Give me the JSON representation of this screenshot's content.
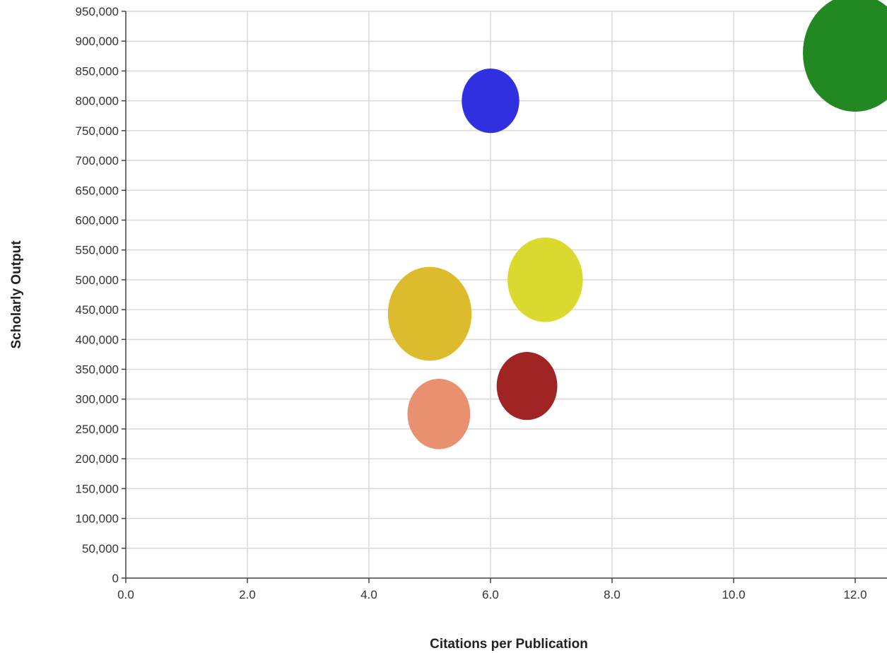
{
  "chart_data": {
    "type": "scatter",
    "title": "",
    "xlabel": "Citations per Publication",
    "ylabel": "Scholarly Output",
    "xlim": [
      0,
      12
    ],
    "ylim": [
      0,
      950000
    ],
    "x_ticks": [
      {
        "value": 0,
        "label": "0.0"
      },
      {
        "value": 2,
        "label": "2.0"
      },
      {
        "value": 4,
        "label": "4.0"
      },
      {
        "value": 6,
        "label": "6.0"
      },
      {
        "value": 8,
        "label": "8.0"
      },
      {
        "value": 10,
        "label": "10.0"
      },
      {
        "value": 12,
        "label": "12.0"
      }
    ],
    "y_ticks": [
      {
        "value": 0,
        "label": "0"
      },
      {
        "value": 50000,
        "label": "50,000"
      },
      {
        "value": 100000,
        "label": "100,000"
      },
      {
        "value": 150000,
        "label": "150,000"
      },
      {
        "value": 200000,
        "label": "200,000"
      },
      {
        "value": 250000,
        "label": "250,000"
      },
      {
        "value": 300000,
        "label": "300,000"
      },
      {
        "value": 350000,
        "label": "350,000"
      },
      {
        "value": 400000,
        "label": "400,000"
      },
      {
        "value": 450000,
        "label": "450,000"
      },
      {
        "value": 500000,
        "label": "500,000"
      },
      {
        "value": 550000,
        "label": "550,000"
      },
      {
        "value": 600000,
        "label": "600,000"
      },
      {
        "value": 650000,
        "label": "650,000"
      },
      {
        "value": 700000,
        "label": "700,000"
      },
      {
        "value": 750000,
        "label": "750,000"
      },
      {
        "value": 800000,
        "label": "800,000"
      },
      {
        "value": 850000,
        "label": "850,000"
      },
      {
        "value": 900000,
        "label": "900,000"
      },
      {
        "value": 950000,
        "label": "950,000"
      }
    ],
    "grid": true,
    "legend": "none",
    "points": [
      {
        "x": 6.0,
        "y": 800000,
        "size": 0.55,
        "color": "#3030e0"
      },
      {
        "x": 12.0,
        "y": 880000,
        "size": 1.0,
        "color": "#228822"
      },
      {
        "x": 6.9,
        "y": 500000,
        "size": 0.72,
        "color": "#dada2e"
      },
      {
        "x": 5.0,
        "y": 443000,
        "size": 0.8,
        "color": "#dcbc2c"
      },
      {
        "x": 6.6,
        "y": 322000,
        "size": 0.58,
        "color": "#a02424"
      },
      {
        "x": 5.15,
        "y": 275000,
        "size": 0.6,
        "color": "#e89070"
      }
    ]
  }
}
